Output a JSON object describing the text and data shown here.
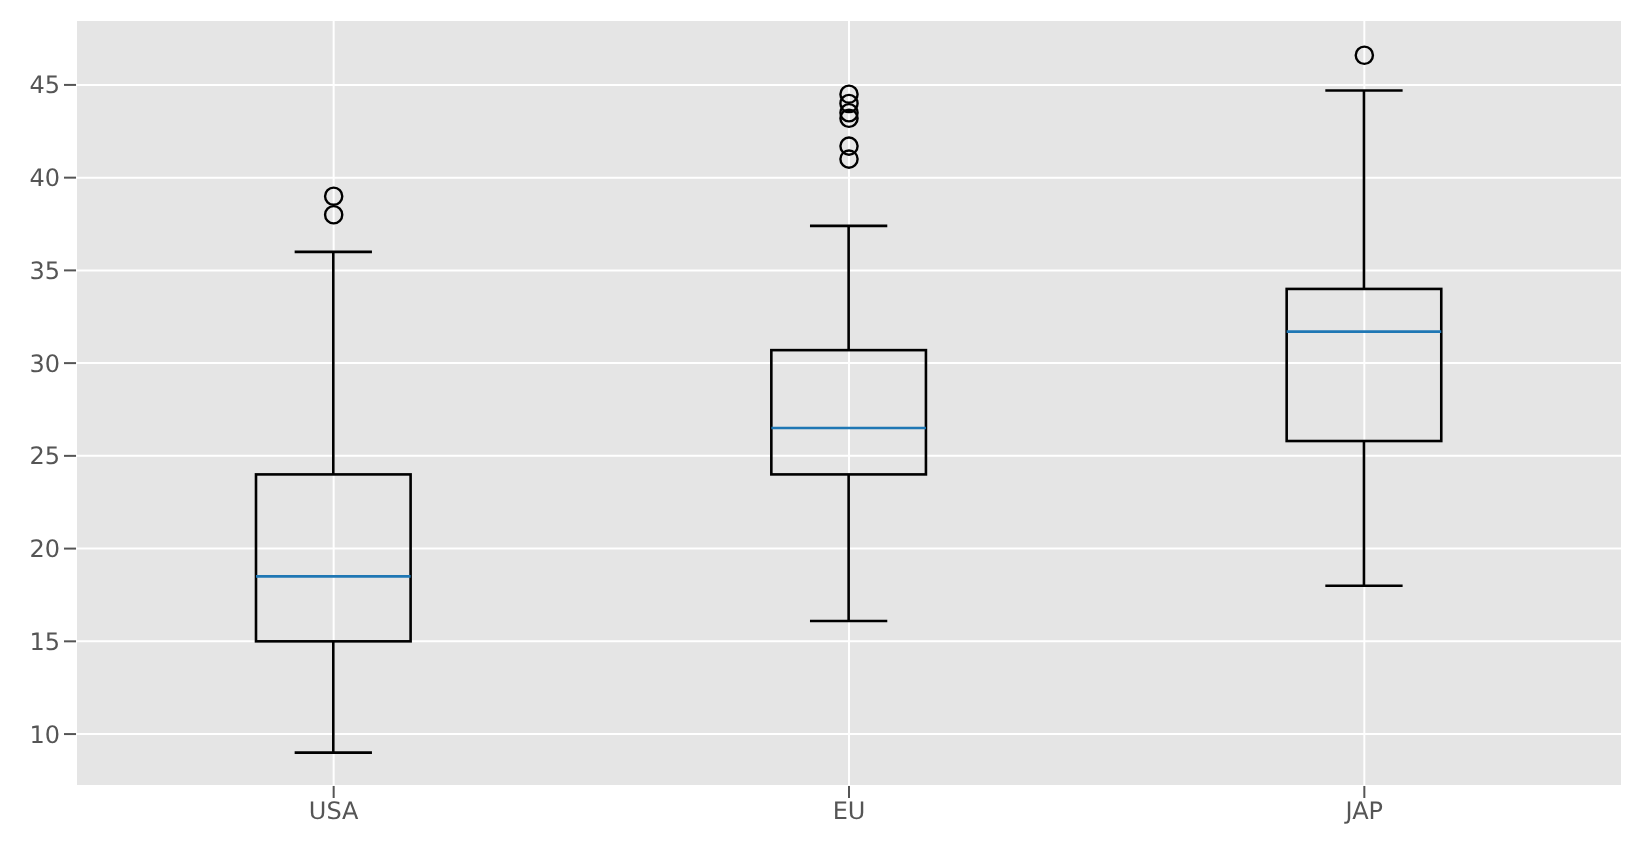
{
  "chart_data": {
    "type": "box",
    "categories": [
      "USA",
      "EU",
      "JAP"
    ],
    "series": [
      {
        "color": "#000000",
        "boxes": [
          {
            "low": 9,
            "q1": 15,
            "median": 18.5,
            "q3": 24,
            "high": 36,
            "outliers": [
              38,
              39
            ]
          },
          {
            "low": 16.1,
            "q1": 24,
            "median": 26.5,
            "q3": 30.7,
            "high": 37.4,
            "outliers": [
              41,
              41.7,
              43.2,
              43.5,
              44,
              44.5
            ]
          },
          {
            "low": 18,
            "q1": 25.8,
            "median": 31.7,
            "q3": 34,
            "high": 44.7,
            "outliers": [
              46.6
            ]
          }
        ]
      }
    ],
    "ylim": [
      7.2,
      48.5
    ],
    "yticks": [
      10,
      15,
      20,
      25,
      30,
      35,
      40,
      45
    ],
    "grid": true
  }
}
